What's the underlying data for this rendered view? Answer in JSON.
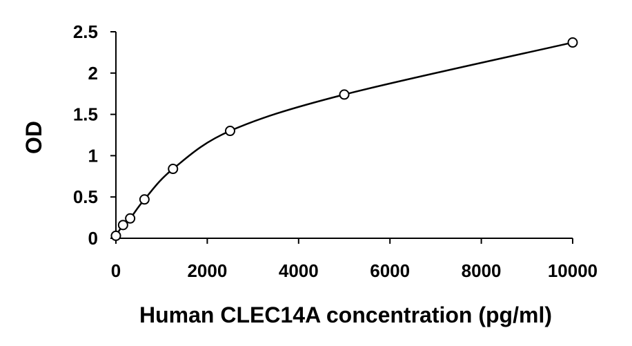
{
  "chart_data": {
    "type": "scatter",
    "title": "",
    "xlabel": "Human CLEC14A concentration (pg/ml)",
    "ylabel": "OD",
    "xlim": [
      0,
      10000
    ],
    "ylim": [
      0,
      2.5
    ],
    "xticks": [
      "0",
      "2000",
      "4000",
      "6000",
      "8000",
      "10000"
    ],
    "yticks": [
      "0",
      "0.5",
      "1",
      "1.5",
      "2",
      "2.5"
    ],
    "grid": false,
    "legend": "none",
    "series": [
      {
        "marker": "open-circle",
        "x": [
          0,
          156,
          312,
          625,
          1250,
          2500,
          5000,
          10000
        ],
        "y": [
          0.03,
          0.16,
          0.24,
          0.47,
          0.84,
          1.3,
          1.74,
          2.37
        ]
      }
    ],
    "fit_curve": {
      "type": "smooth-line",
      "x": [
        0,
        156,
        312,
        625,
        1250,
        2500,
        5000,
        10000
      ],
      "y": [
        0.03,
        0.16,
        0.24,
        0.47,
        0.84,
        1.3,
        1.74,
        2.37
      ]
    },
    "colors": {
      "line": "#000000",
      "marker": "#000000",
      "background": "#ffffff"
    }
  }
}
